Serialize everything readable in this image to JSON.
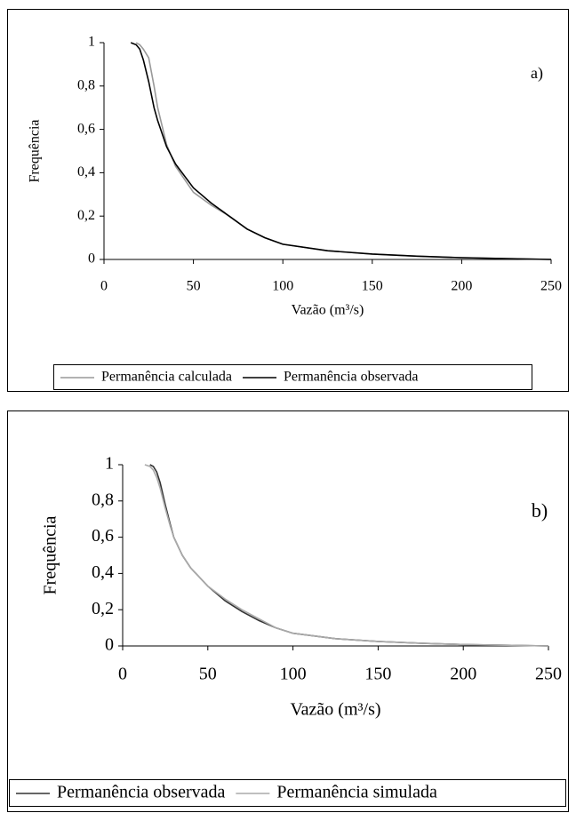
{
  "chart_data": [
    {
      "type": "line",
      "annotation": "a)",
      "xlabel": "Vazão (m³/s)",
      "ylabel": "Frequência",
      "x": [
        15,
        18,
        20,
        22,
        25,
        28,
        30,
        35,
        40,
        50,
        60,
        70,
        80,
        90,
        100,
        125,
        150,
        175,
        200,
        225,
        250
      ],
      "xlim": [
        0,
        250
      ],
      "xticks": [
        0,
        50,
        100,
        150,
        200,
        250
      ],
      "ylim": [
        0,
        1
      ],
      "yticks": [
        0,
        {
          "value": 0.2,
          "label": "0,2"
        },
        {
          "value": 0.4,
          "label": "0,4"
        },
        {
          "value": 0.6,
          "label": "0,6"
        },
        {
          "value": 0.8,
          "label": "0,8"
        },
        1
      ],
      "series": [
        {
          "name": "Permanência calculada",
          "color": "#999999",
          "values": [
            null,
            1,
            0.99,
            0.97,
            0.93,
            0.8,
            0.7,
            0.53,
            0.43,
            0.31,
            0.25,
            0.2,
            0.14,
            0.1,
            0.07,
            0.04,
            0.025,
            0.015,
            0.008,
            0.004,
            0
          ]
        },
        {
          "name": "Permanência observada",
          "color": "#000000",
          "values": [
            1,
            0.99,
            0.97,
            0.92,
            0.82,
            0.7,
            0.64,
            0.52,
            0.44,
            0.33,
            0.26,
            0.2,
            0.14,
            0.1,
            0.07,
            0.04,
            0.025,
            0.015,
            0.008,
            0.004,
            0
          ]
        }
      ]
    },
    {
      "type": "line",
      "annotation": "b)",
      "xlabel": "Vazão (m³/s)",
      "ylabel": "Frequência",
      "x": [
        13,
        16,
        18,
        20,
        22,
        25,
        28,
        30,
        35,
        40,
        50,
        60,
        70,
        80,
        90,
        100,
        125,
        150,
        175,
        200,
        225,
        250
      ],
      "xlim": [
        0,
        250
      ],
      "xticks": [
        0,
        50,
        100,
        150,
        200,
        250
      ],
      "ylim": [
        0,
        1
      ],
      "yticks": [
        0,
        {
          "value": 0.2,
          "label": "0,2"
        },
        {
          "value": 0.4,
          "label": "0,4"
        },
        {
          "value": 0.6,
          "label": "0,6"
        },
        {
          "value": 0.8,
          "label": "0,8"
        },
        1
      ],
      "series": [
        {
          "name": "Permanência observada",
          "color": "#333333",
          "values": [
            null,
            1,
            0.99,
            0.96,
            0.9,
            0.78,
            0.67,
            0.6,
            0.5,
            0.43,
            0.33,
            0.25,
            0.19,
            0.14,
            0.1,
            0.07,
            0.04,
            0.025,
            0.015,
            0.008,
            0.004,
            0
          ]
        },
        {
          "name": "Permanência simulada",
          "color": "#aaaaaa",
          "values": [
            1,
            0.99,
            0.97,
            0.93,
            0.87,
            0.76,
            0.66,
            0.6,
            0.5,
            0.43,
            0.33,
            0.26,
            0.2,
            0.15,
            0.1,
            0.07,
            0.04,
            0.025,
            0.015,
            0.008,
            0.004,
            0
          ]
        }
      ]
    }
  ]
}
